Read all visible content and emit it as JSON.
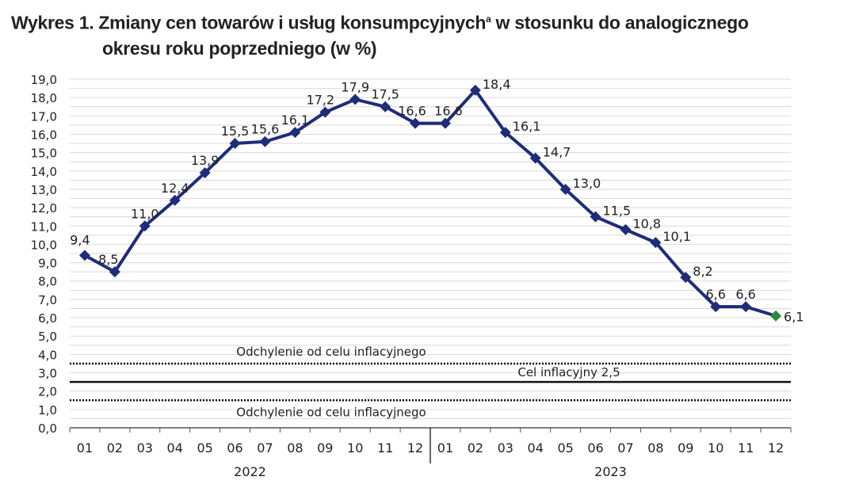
{
  "chart_data": {
    "type": "line",
    "title_line1": "Wykres 1. Zmiany cen towarów i usług konsumpcyjnych",
    "title_sup": "a",
    "title_line1_end": " w stosunku do analogicznego",
    "title_line2": "okresu roku poprzedniego (w %)",
    "categories": [
      "01",
      "02",
      "03",
      "04",
      "05",
      "06",
      "07",
      "08",
      "09",
      "10",
      "11",
      "12",
      "01",
      "02",
      "03",
      "04",
      "05",
      "06",
      "07",
      "08",
      "09",
      "10",
      "11",
      "12"
    ],
    "years": [
      "2022",
      "2023"
    ],
    "values": [
      9.4,
      8.5,
      11.0,
      12.4,
      13.9,
      15.5,
      15.6,
      16.1,
      17.2,
      17.9,
      17.5,
      16.6,
      16.6,
      18.4,
      16.1,
      14.7,
      13.0,
      11.5,
      10.8,
      10.1,
      8.2,
      6.6,
      6.6,
      6.1
    ],
    "labels": [
      "9,4",
      "8,5",
      "11,0",
      "12,4",
      "13,9",
      "15,5",
      "15,6",
      "16,1",
      "17,2",
      "17,9",
      "17,5",
      "16,6",
      "16,6",
      "18,4",
      "16,1",
      "14,7",
      "13,0",
      "11,5",
      "10,8",
      "10,1",
      "8,2",
      "6,6",
      "6,6",
      "6,1"
    ],
    "ylim": [
      0,
      19
    ],
    "yticks": [
      "0,0",
      "1,0",
      "2,0",
      "3,0",
      "4,0",
      "5,0",
      "6,0",
      "7,0",
      "8,0",
      "9,0",
      "10,0",
      "11,0",
      "12,0",
      "13,0",
      "14,0",
      "15,0",
      "16,0",
      "17,0",
      "18,0",
      "19,0"
    ],
    "grid": true,
    "reference_lines": [
      {
        "value": 3.5,
        "style": "dotted",
        "label": "Odchylenie od celu inflacyjnego"
      },
      {
        "value": 2.5,
        "style": "solid",
        "label": "Cel inflacyjny 2,5"
      },
      {
        "value": 1.5,
        "style": "dotted",
        "label": "Odchylenie od celu inflacyjnego"
      }
    ],
    "colors": {
      "line": "#1f2c7a",
      "last_point": "#2e8b3e",
      "grid": "#d9d9d9"
    }
  }
}
